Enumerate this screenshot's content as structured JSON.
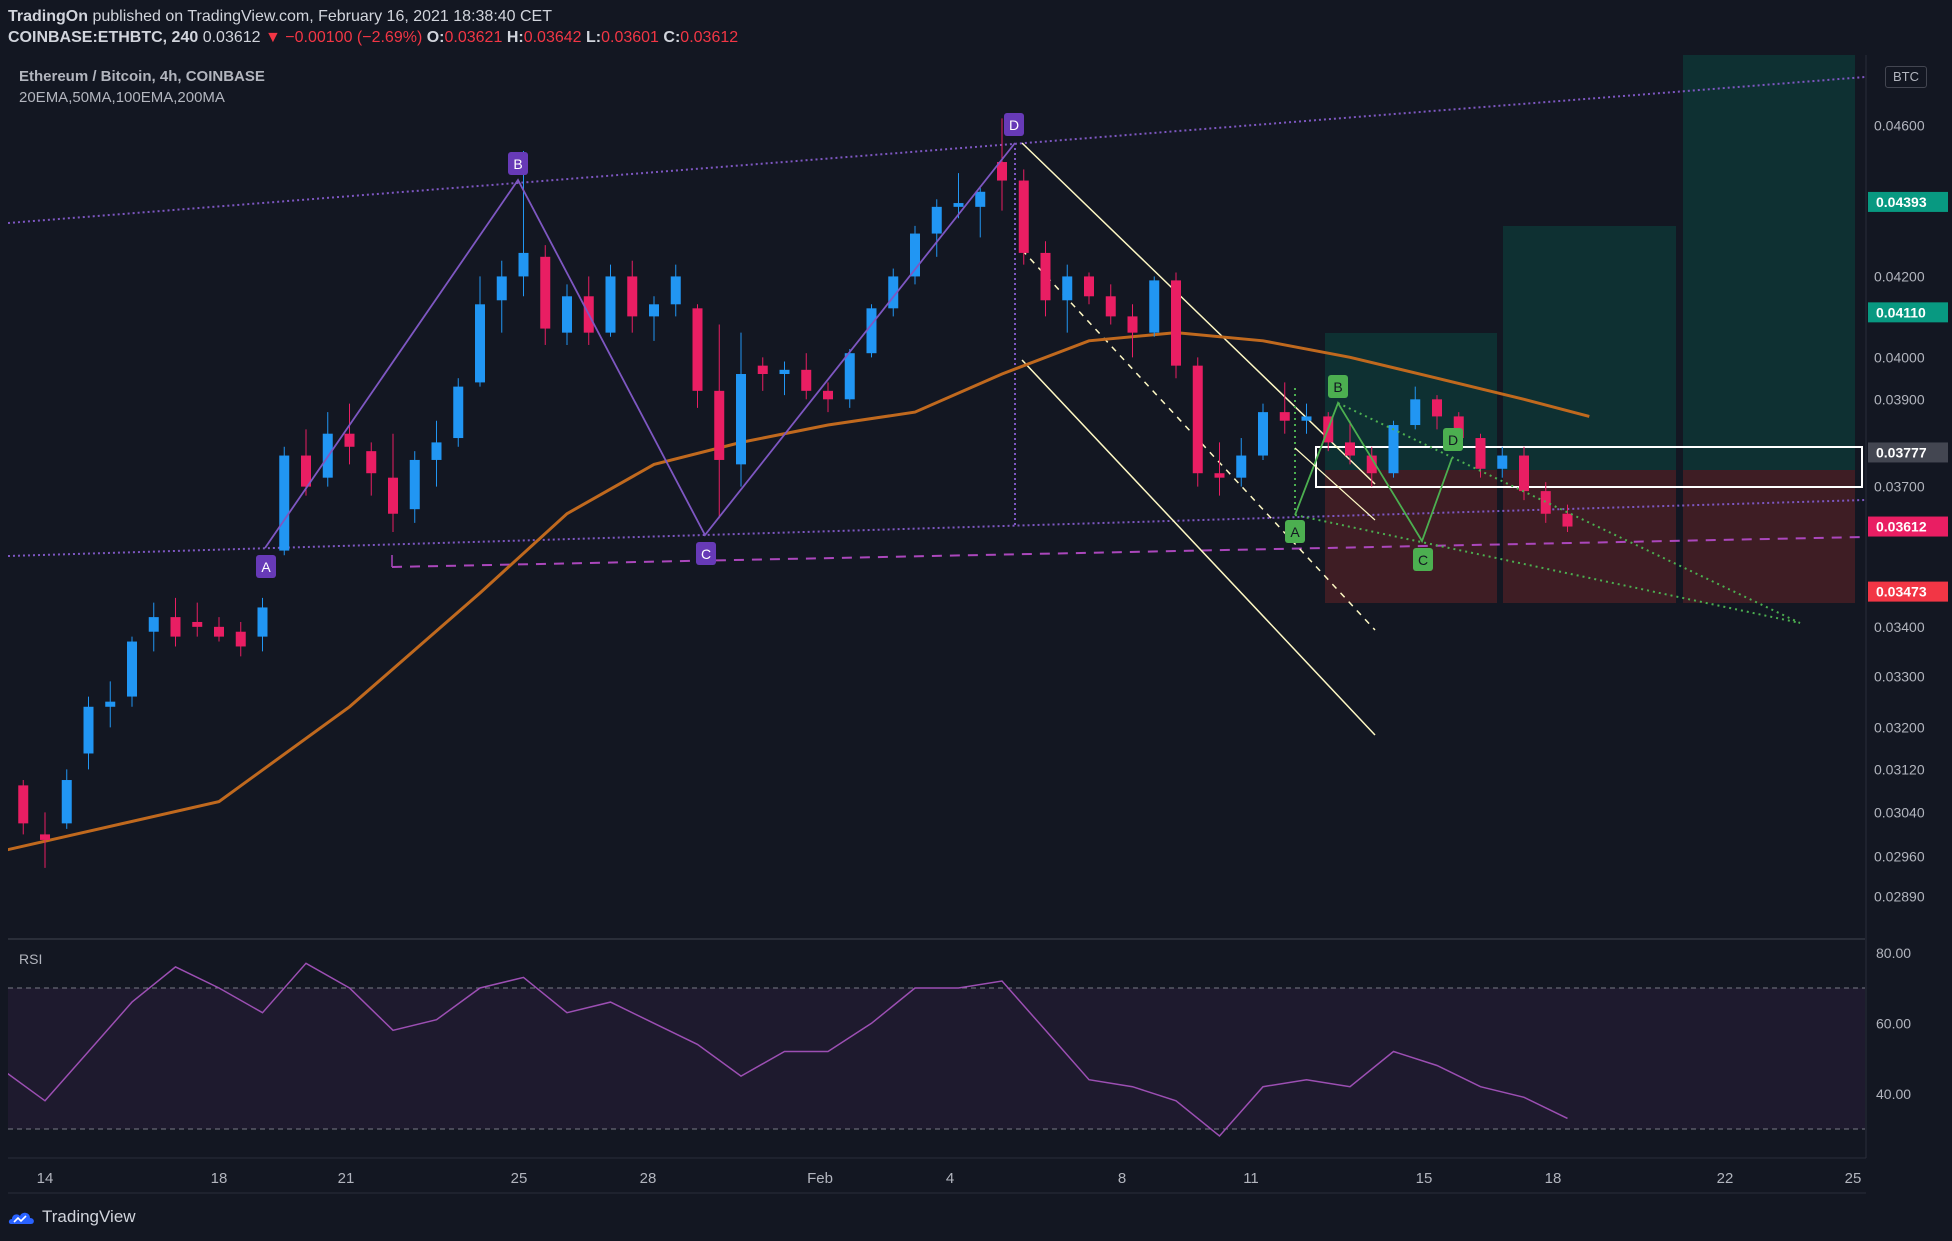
{
  "header": {
    "author": "TradingOn",
    "published_text": "published on TradingView.com, February 16, 2021 18:38:40 CET",
    "symbol_line": "COINBASE:ETHBTC, 240",
    "last": "0.03612",
    "change": "▼ −0.00100 (−2.69%)",
    "o_label": "O:",
    "o_value": "0.03621",
    "h_label": "H:",
    "h_value": "0.03642",
    "l_label": "L:",
    "l_value": "0.03601",
    "c_label": "C:",
    "c_value": "0.03612"
  },
  "legend": {
    "title": "Ethereum / Bitcoin, 4h, COINBASE",
    "indicators": "20EMA,50MA,100EMA,200MA"
  },
  "currency_badge": "BTC",
  "rsi_label": "RSI",
  "footer": {
    "brand": "TradingView"
  },
  "colors": {
    "background": "#131722",
    "up": "#2196f3",
    "down": "#e91e63",
    "ema": "#c0691e",
    "pattern_purple": "#7e57c2",
    "pattern_green": "#4caf50",
    "rsi_line": "#9c4fb3",
    "target": "#089981",
    "stop": "#f23645"
  },
  "icons": {
    "logo": "tradingview-cloud-logo"
  },
  "chart_data": {
    "type": "candlestick",
    "price_axis": {
      "labels": [
        "0.04600",
        "0.04200",
        "0.04000",
        "0.03900",
        "0.03700",
        "0.03400",
        "0.03300",
        "0.03200",
        "0.03120",
        "0.03040",
        "0.02960",
        "0.02890"
      ],
      "ylim": [
        0.0282,
        0.048
      ],
      "scale": "log"
    },
    "price_badges": [
      {
        "value": "0.04393",
        "color": "#089981"
      },
      {
        "value": "0.04110",
        "color": "#089981"
      },
      {
        "value": "0.03777",
        "color": "#434651"
      },
      {
        "value": "0.03612",
        "color": "#e91e63"
      },
      {
        "value": "0.03473",
        "color": "#f23645"
      }
    ],
    "time_axis": {
      "labels": [
        "14",
        "18",
        "21",
        "25",
        "28",
        "Feb",
        "4",
        "8",
        "11",
        "15",
        "18",
        "22",
        "25"
      ]
    },
    "ohlc_approx": [
      [
        13.0,
        0.0308,
        0.0311,
        0.0305,
        0.0309
      ],
      [
        13.5,
        0.0309,
        0.031,
        0.03,
        0.0302
      ],
      [
        14.0,
        0.03,
        0.0304,
        0.0294,
        0.0299
      ],
      [
        14.5,
        0.0302,
        0.0312,
        0.0301,
        0.031
      ],
      [
        15.0,
        0.0315,
        0.0326,
        0.0312,
        0.0324
      ],
      [
        15.5,
        0.0324,
        0.0329,
        0.032,
        0.0325
      ],
      [
        16.0,
        0.0326,
        0.0338,
        0.0324,
        0.0337
      ],
      [
        16.5,
        0.0339,
        0.0345,
        0.0335,
        0.0342
      ],
      [
        17.0,
        0.0342,
        0.0346,
        0.0336,
        0.0338
      ],
      [
        17.5,
        0.0341,
        0.0345,
        0.0338,
        0.034
      ],
      [
        18.0,
        0.034,
        0.0342,
        0.0337,
        0.0338
      ],
      [
        18.5,
        0.0339,
        0.0341,
        0.0334,
        0.0336
      ],
      [
        19.0,
        0.0338,
        0.0346,
        0.0335,
        0.0344
      ],
      [
        19.5,
        0.0356,
        0.0379,
        0.0355,
        0.0377
      ],
      [
        20.0,
        0.0377,
        0.0383,
        0.0368,
        0.037
      ],
      [
        20.5,
        0.0372,
        0.0387,
        0.037,
        0.0382
      ],
      [
        21.0,
        0.0382,
        0.0389,
        0.0375,
        0.0379
      ],
      [
        21.5,
        0.0378,
        0.038,
        0.0368,
        0.0373
      ],
      [
        22.0,
        0.0372,
        0.0382,
        0.036,
        0.0364
      ],
      [
        22.5,
        0.0365,
        0.0378,
        0.0362,
        0.0376
      ],
      [
        23.0,
        0.0376,
        0.0385,
        0.037,
        0.038
      ],
      [
        23.5,
        0.0381,
        0.0395,
        0.0379,
        0.0393
      ],
      [
        24.0,
        0.0394,
        0.042,
        0.0393,
        0.0413
      ],
      [
        24.5,
        0.0414,
        0.0424,
        0.0406,
        0.042
      ],
      [
        25.0,
        0.042,
        0.0453,
        0.0415,
        0.0426
      ],
      [
        25.5,
        0.0425,
        0.0428,
        0.0403,
        0.0407
      ],
      [
        26.0,
        0.0406,
        0.0418,
        0.0403,
        0.0415
      ],
      [
        26.5,
        0.0415,
        0.042,
        0.0403,
        0.0406
      ],
      [
        27.0,
        0.0406,
        0.0423,
        0.0405,
        0.042
      ],
      [
        27.5,
        0.042,
        0.0424,
        0.0406,
        0.041
      ],
      [
        28.0,
        0.041,
        0.0415,
        0.0404,
        0.0413
      ],
      [
        28.5,
        0.0413,
        0.0423,
        0.041,
        0.042
      ],
      [
        29.0,
        0.0412,
        0.0413,
        0.0388,
        0.0392
      ],
      [
        29.5,
        0.0392,
        0.0408,
        0.0363,
        0.0376
      ],
      [
        30.0,
        0.0375,
        0.0406,
        0.037,
        0.0396
      ],
      [
        30.5,
        0.0398,
        0.04,
        0.0392,
        0.0396
      ],
      [
        31.0,
        0.0396,
        0.0399,
        0.0391,
        0.0397
      ],
      [
        31.5,
        0.0397,
        0.0401,
        0.039,
        0.0392
      ],
      [
        32.0,
        0.0392,
        0.0394,
        0.0387,
        0.039
      ],
      [
        32.5,
        0.039,
        0.0402,
        0.0388,
        0.0401
      ],
      [
        33.0,
        0.0401,
        0.0413,
        0.04,
        0.0412
      ],
      [
        33.5,
        0.0412,
        0.0422,
        0.041,
        0.042
      ],
      [
        34.0,
        0.042,
        0.0433,
        0.0418,
        0.0431
      ],
      [
        34.5,
        0.0431,
        0.044,
        0.0425,
        0.0438
      ],
      [
        35.0,
        0.0438,
        0.0447,
        0.0435,
        0.0439
      ],
      [
        35.5,
        0.0438,
        0.0443,
        0.043,
        0.0442
      ],
      [
        36.0,
        0.045,
        0.0462,
        0.0437,
        0.0445
      ],
      [
        36.5,
        0.0445,
        0.0448,
        0.0423,
        0.0426
      ],
      [
        37.0,
        0.0426,
        0.0429,
        0.041,
        0.0414
      ],
      [
        37.5,
        0.0414,
        0.0423,
        0.0406,
        0.042
      ],
      [
        38.0,
        0.042,
        0.0421,
        0.0413,
        0.0415
      ],
      [
        38.5,
        0.0415,
        0.0418,
        0.0408,
        0.041
      ],
      [
        39.0,
        0.041,
        0.0413,
        0.04,
        0.0406
      ],
      [
        39.5,
        0.0406,
        0.042,
        0.0405,
        0.0419
      ],
      [
        40.0,
        0.0419,
        0.0421,
        0.0395,
        0.0398
      ],
      [
        40.5,
        0.0398,
        0.04,
        0.037,
        0.0373
      ],
      [
        41.0,
        0.0373,
        0.038,
        0.0368,
        0.0372
      ],
      [
        41.5,
        0.0372,
        0.0381,
        0.037,
        0.0377
      ],
      [
        42.0,
        0.0377,
        0.0389,
        0.0376,
        0.0387
      ],
      [
        42.5,
        0.0387,
        0.0394,
        0.0382,
        0.0385
      ],
      [
        43.0,
        0.0385,
        0.0389,
        0.0382,
        0.0386
      ],
      [
        43.5,
        0.0386,
        0.0387,
        0.0378,
        0.038
      ],
      [
        44.0,
        0.038,
        0.0385,
        0.0375,
        0.0377
      ],
      [
        44.5,
        0.0377,
        0.0379,
        0.037,
        0.0373
      ],
      [
        45.0,
        0.0373,
        0.0385,
        0.0372,
        0.0384
      ],
      [
        45.5,
        0.0384,
        0.0393,
        0.0383,
        0.039
      ],
      [
        46.0,
        0.039,
        0.0391,
        0.0383,
        0.0386
      ],
      [
        46.5,
        0.0386,
        0.0387,
        0.0379,
        0.0381
      ],
      [
        47.0,
        0.0381,
        0.0382,
        0.0372,
        0.0374
      ],
      [
        47.5,
        0.0374,
        0.0379,
        0.0372,
        0.0377
      ],
      [
        48.0,
        0.0377,
        0.0379,
        0.0367,
        0.0369
      ],
      [
        48.5,
        0.0369,
        0.0371,
        0.0362,
        0.0364
      ],
      [
        49.0,
        0.0364,
        0.0366,
        0.036,
        0.03612
      ]
    ],
    "ema_line_approx": [
      [
        13.0,
        0.0297
      ],
      [
        18.0,
        0.0306
      ],
      [
        21.0,
        0.0324
      ],
      [
        24.0,
        0.0347
      ],
      [
        26.0,
        0.0364
      ],
      [
        28.0,
        0.0375
      ],
      [
        30.0,
        0.038
      ],
      [
        32.0,
        0.0384
      ],
      [
        34.0,
        0.0387
      ],
      [
        36.0,
        0.0396
      ],
      [
        38.0,
        0.0404
      ],
      [
        40.0,
        0.0406
      ],
      [
        42.0,
        0.0404
      ],
      [
        44.0,
        0.04
      ],
      [
        46.0,
        0.0395
      ],
      [
        48.0,
        0.039
      ],
      [
        49.5,
        0.0386
      ]
    ],
    "rsi": {
      "labels": [
        "80.00",
        "60.00",
        "40.00"
      ],
      "levels": [
        70,
        30
      ],
      "values_approx": [
        [
          13.0,
          47
        ],
        [
          14.0,
          38
        ],
        [
          15.0,
          52
        ],
        [
          16.0,
          66
        ],
        [
          17.0,
          76
        ],
        [
          18.0,
          70
        ],
        [
          19.0,
          63
        ],
        [
          20.0,
          77
        ],
        [
          21.0,
          70
        ],
        [
          22.0,
          58
        ],
        [
          23.0,
          61
        ],
        [
          24.0,
          70
        ],
        [
          25.0,
          73
        ],
        [
          26.0,
          63
        ],
        [
          27.0,
          66
        ],
        [
          28.0,
          60
        ],
        [
          29.0,
          54
        ],
        [
          30.0,
          45
        ],
        [
          31.0,
          52
        ],
        [
          32.0,
          52
        ],
        [
          33.0,
          60
        ],
        [
          34.0,
          70
        ],
        [
          35.0,
          70
        ],
        [
          36.0,
          72
        ],
        [
          37.0,
          58
        ],
        [
          38.0,
          44
        ],
        [
          39.0,
          42
        ],
        [
          40.0,
          38
        ],
        [
          41.0,
          28
        ],
        [
          42.0,
          42
        ],
        [
          43.0,
          44
        ],
        [
          44.0,
          42
        ],
        [
          45.0,
          52
        ],
        [
          46.0,
          48
        ],
        [
          47.0,
          42
        ],
        [
          48.0,
          39
        ],
        [
          49.0,
          33
        ]
      ]
    },
    "annotations": {
      "purple_points": [
        "A",
        "B",
        "C",
        "D"
      ],
      "green_points": [
        "A",
        "B",
        "C",
        "D"
      ],
      "stop_price": "0.03473",
      "entry_price": "0.03777",
      "targets": [
        "0.04110",
        "0.04393"
      ]
    }
  }
}
